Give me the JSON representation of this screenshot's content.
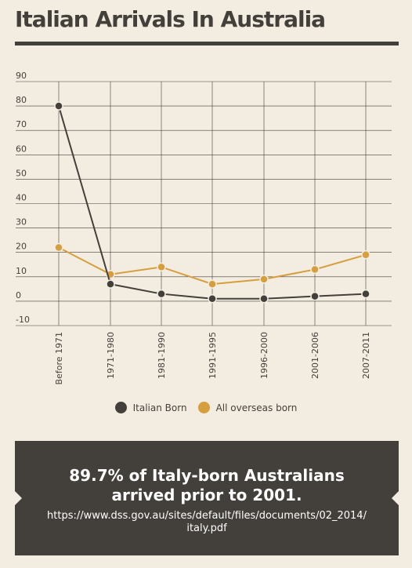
{
  "header": {
    "title": "Italian Arrivals In Australia"
  },
  "chart_data": {
    "type": "line",
    "categories": [
      "Before 1971",
      "1971-1980",
      "1981-1990",
      "1991-1995",
      "1996-2000",
      "2001-2006",
      "2007-2011"
    ],
    "yticks": [
      90,
      80,
      70,
      60,
      50,
      40,
      30,
      20,
      10,
      0,
      -10
    ],
    "ylim": [
      -10,
      90
    ],
    "grid": true,
    "legend_position": "bottom",
    "series": [
      {
        "name": "Italian Born",
        "color": "#433f3a",
        "values": [
          80,
          7,
          3,
          1,
          1,
          2,
          3
        ]
      },
      {
        "name": "All overseas born",
        "color": "#d69e3d",
        "values": [
          22,
          11,
          14,
          7,
          9,
          13,
          19
        ]
      }
    ]
  },
  "banner": {
    "headline": "89.7% of Italy-born Australians arrived prior to 2001.",
    "source": "https://www.dss.gov.au/sites/default/files/documents/02_2014/italy.pdf"
  }
}
